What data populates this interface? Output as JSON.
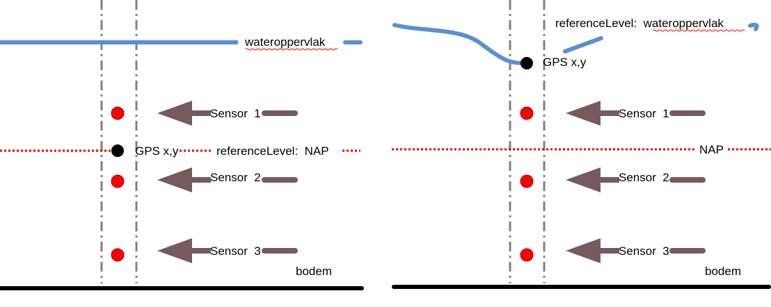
{
  "colors": {
    "water": "#5b8fd4",
    "reference_line": "#e00000",
    "sensor": "#ff0000",
    "gps": "#000000",
    "arrow": "#765a5e",
    "guide": "#808080",
    "ground": "#000000"
  },
  "left_panel": {
    "water_label": "wateroppervlak",
    "gps_label": "GPS x,y",
    "reference_label": "referenceLevel:  NAP",
    "sensors": [
      "Sensor  1",
      "Sensor  2",
      "Sensor  3"
    ],
    "bottom_label": "bodem"
  },
  "right_panel": {
    "water_label": "referenceLevel:  wateroppervlak",
    "gps_label": "GPS x,y",
    "reference_label": "NAP",
    "sensors": [
      "Sensor  1",
      "Sensor  2",
      "Sensor  3"
    ],
    "bottom_label": "bodem"
  }
}
